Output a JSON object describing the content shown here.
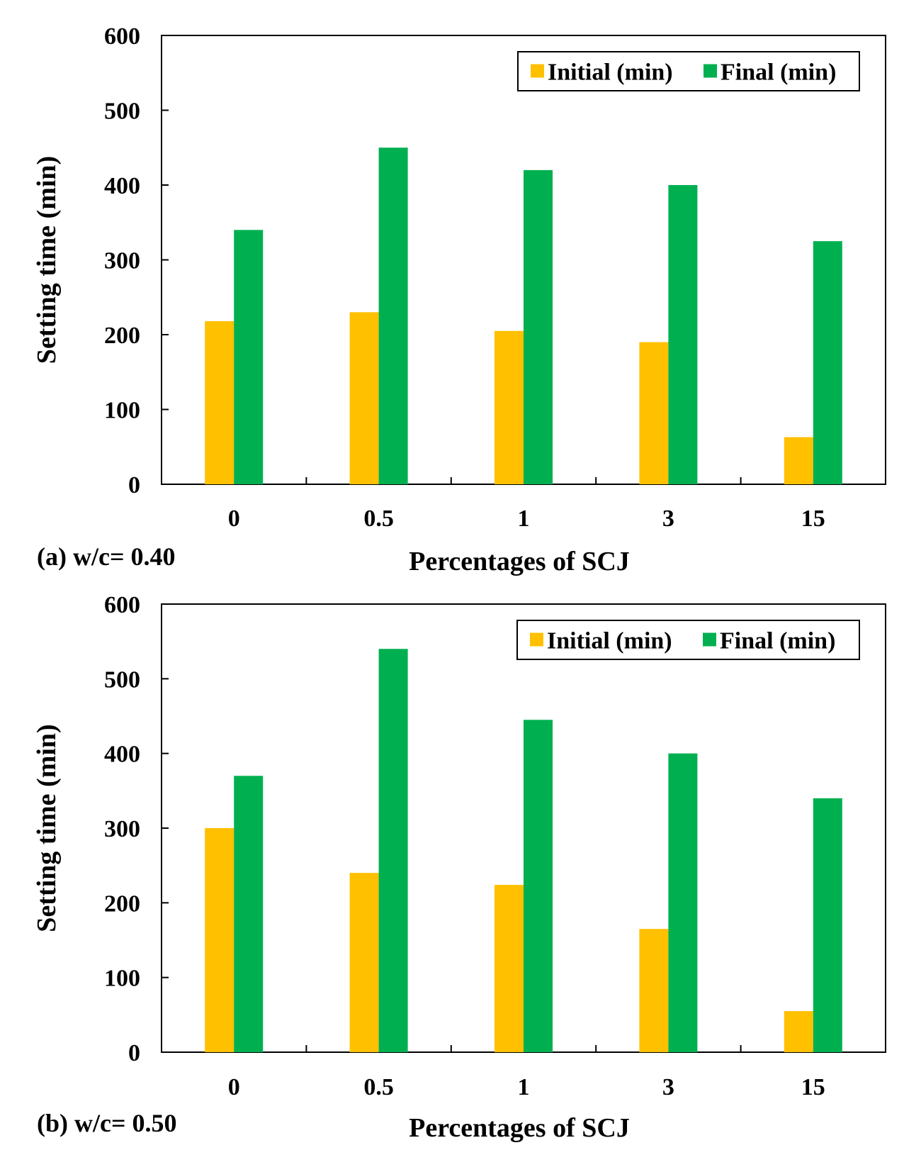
{
  "chart_data": [
    {
      "type": "bar",
      "panel_label": "(a) w/c= 0.40",
      "categories": [
        "0",
        "0.5",
        "1",
        "3",
        "15"
      ],
      "series": [
        {
          "name": "Initial (min)",
          "color": "#FFC000",
          "values": [
            218,
            230,
            205,
            190,
            63
          ]
        },
        {
          "name": "Final (min)",
          "color": "#00B050",
          "values": [
            340,
            450,
            420,
            400,
            325
          ]
        }
      ],
      "xlabel": "Percentages of SCJ",
      "ylabel": "Setting time (min)",
      "ylim": [
        0,
        600
      ],
      "yticks": [
        0,
        100,
        200,
        300,
        400,
        500,
        600
      ],
      "legend_position": "top-right",
      "grid": false
    },
    {
      "type": "bar",
      "panel_label": "(b) w/c= 0.50",
      "categories": [
        "0",
        "0.5",
        "1",
        "3",
        "15"
      ],
      "series": [
        {
          "name": "Initial (min)",
          "color": "#FFC000",
          "values": [
            300,
            240,
            224,
            165,
            55
          ]
        },
        {
          "name": "Final (min)",
          "color": "#00B050",
          "values": [
            370,
            540,
            445,
            400,
            340
          ]
        }
      ],
      "xlabel": "Percentages of SCJ",
      "ylabel": "Setting time (min)",
      "ylim": [
        0,
        600
      ],
      "yticks": [
        0,
        100,
        200,
        300,
        400,
        500,
        600
      ],
      "legend_position": "top-right",
      "grid": false
    }
  ]
}
